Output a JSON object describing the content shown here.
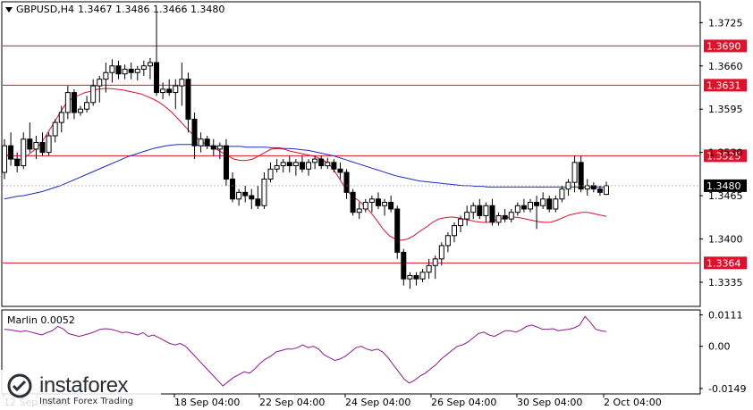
{
  "header": {
    "symbol_timeframe": "GBPUSD,H4",
    "ohlc": "1.3467 1.3486 1.3466 1.3480"
  },
  "indicator": {
    "name": "Marlin",
    "value": "0.0052"
  },
  "logo": {
    "name": "instaforex",
    "tagline": "Instant Forex Trading"
  },
  "colors": {
    "candle_up": "#ffffff",
    "candle_down": "#000000",
    "ma_fast": "#e0102a",
    "ma_slow": "#1a2bc8",
    "marlin": "#8b1a8b",
    "hline": "#e0102a",
    "price_badge": "#000000"
  },
  "chart_data": [
    {
      "type": "candlestick",
      "ylim": [
        1.33,
        1.3755
      ],
      "price_axis_ticks": [
        "1.3725",
        "1.3660",
        "1.3595",
        "1.3530",
        "1.3465",
        "1.3400",
        "1.3335"
      ],
      "time_labels": [
        "12 Sep 20:00",
        "18 Sep 04:00",
        "22 Sep 04:00",
        "24 Sep 04:00",
        "26 Sep 04:00",
        "30 Sep 04:00",
        "2 Oct 04:00"
      ],
      "horizontal_levels": [
        "1.3690",
        "1.3631",
        "1.3525",
        "1.3364"
      ],
      "current_price": "1.3480",
      "candles": [
        [
          1.35,
          1.355,
          1.349,
          1.354
        ],
        [
          1.354,
          1.356,
          1.351,
          1.352
        ],
        [
          1.352,
          1.353,
          1.35,
          1.351
        ],
        [
          1.351,
          1.356,
          1.3505,
          1.355
        ],
        [
          1.355,
          1.3575,
          1.353,
          1.3535
        ],
        [
          1.3535,
          1.3555,
          1.352,
          1.3545
        ],
        [
          1.3545,
          1.356,
          1.3525,
          1.353
        ],
        [
          1.353,
          1.356,
          1.3525,
          1.3555
        ],
        [
          1.3555,
          1.358,
          1.3545,
          1.3575
        ],
        [
          1.3575,
          1.36,
          1.356,
          1.359
        ],
        [
          1.359,
          1.363,
          1.358,
          1.362
        ],
        [
          1.362,
          1.3625,
          1.358,
          1.359
        ],
        [
          1.359,
          1.36,
          1.3585,
          1.3595
        ],
        [
          1.3595,
          1.3615,
          1.359,
          1.3605
        ],
        [
          1.3605,
          1.364,
          1.36,
          1.363
        ],
        [
          1.363,
          1.3645,
          1.3605,
          1.364
        ],
        [
          1.364,
          1.3665,
          1.362,
          1.365
        ],
        [
          1.365,
          1.367,
          1.3635,
          1.366
        ],
        [
          1.366,
          1.3668,
          1.364,
          1.3648
        ],
        [
          1.3648,
          1.3662,
          1.364,
          1.3655
        ],
        [
          1.3655,
          1.3665,
          1.364,
          1.365
        ],
        [
          1.365,
          1.366,
          1.3638,
          1.3655
        ],
        [
          1.3655,
          1.3668,
          1.3645,
          1.366
        ],
        [
          1.366,
          1.3672,
          1.364,
          1.3665
        ],
        [
          1.3665,
          1.374,
          1.3615,
          1.362
        ],
        [
          1.362,
          1.3635,
          1.361,
          1.3625
        ],
        [
          1.3625,
          1.364,
          1.3615,
          1.362
        ],
        [
          1.362,
          1.364,
          1.3595,
          1.363
        ],
        [
          1.363,
          1.3665,
          1.36,
          1.364
        ],
        [
          1.364,
          1.365,
          1.356,
          1.358
        ],
        [
          1.358,
          1.359,
          1.352,
          1.354
        ],
        [
          1.354,
          1.356,
          1.353,
          1.355
        ],
        [
          1.355,
          1.3555,
          1.3535,
          1.354
        ],
        [
          1.354,
          1.355,
          1.3525,
          1.3535
        ],
        [
          1.3535,
          1.3545,
          1.352,
          1.354
        ],
        [
          1.354,
          1.355,
          1.348,
          1.349
        ],
        [
          1.349,
          1.35,
          1.3455,
          1.346
        ],
        [
          1.346,
          1.3475,
          1.345,
          1.347
        ],
        [
          1.347,
          1.348,
          1.3455,
          1.3465
        ],
        [
          1.3465,
          1.3475,
          1.3445,
          1.346
        ],
        [
          1.346,
          1.348,
          1.3445,
          1.345
        ],
        [
          1.345,
          1.35,
          1.3445,
          1.349
        ],
        [
          1.349,
          1.3515,
          1.3485,
          1.3505
        ],
        [
          1.3505,
          1.352,
          1.35,
          1.351
        ],
        [
          1.351,
          1.352,
          1.35,
          1.3515
        ],
        [
          1.3515,
          1.3525,
          1.35,
          1.351
        ],
        [
          1.351,
          1.352,
          1.3495,
          1.3515
        ],
        [
          1.3515,
          1.3525,
          1.35,
          1.3505
        ],
        [
          1.3505,
          1.352,
          1.3495,
          1.3515
        ],
        [
          1.3515,
          1.3525,
          1.3505,
          1.352
        ],
        [
          1.352,
          1.3525,
          1.3505,
          1.351
        ],
        [
          1.351,
          1.3522,
          1.3505,
          1.3515
        ],
        [
          1.3515,
          1.352,
          1.35,
          1.3505
        ],
        [
          1.3505,
          1.3515,
          1.349,
          1.35
        ],
        [
          1.35,
          1.3505,
          1.346,
          1.347
        ],
        [
          1.347,
          1.3475,
          1.3435,
          1.344
        ],
        [
          1.344,
          1.3455,
          1.343,
          1.3445
        ],
        [
          1.3445,
          1.346,
          1.344,
          1.3455
        ],
        [
          1.3455,
          1.3465,
          1.344,
          1.346
        ],
        [
          1.346,
          1.347,
          1.3445,
          1.345
        ],
        [
          1.345,
          1.346,
          1.3435,
          1.3455
        ],
        [
          1.3455,
          1.3465,
          1.344,
          1.3445
        ],
        [
          1.3445,
          1.345,
          1.337,
          1.338
        ],
        [
          1.338,
          1.3385,
          1.333,
          1.334
        ],
        [
          1.334,
          1.335,
          1.3325,
          1.3345
        ],
        [
          1.3345,
          1.335,
          1.333,
          1.334
        ],
        [
          1.334,
          1.3355,
          1.3335,
          1.335
        ],
        [
          1.335,
          1.337,
          1.334,
          1.336
        ],
        [
          1.336,
          1.3375,
          1.334,
          1.337
        ],
        [
          1.337,
          1.3395,
          1.336,
          1.339
        ],
        [
          1.339,
          1.341,
          1.338,
          1.3405
        ],
        [
          1.3405,
          1.3425,
          1.3395,
          1.342
        ],
        [
          1.342,
          1.3435,
          1.341,
          1.343
        ],
        [
          1.343,
          1.345,
          1.342,
          1.344
        ],
        [
          1.344,
          1.3455,
          1.343,
          1.345
        ],
        [
          1.345,
          1.346,
          1.343,
          1.3435
        ],
        [
          1.3435,
          1.3455,
          1.3425,
          1.345
        ],
        [
          1.345,
          1.346,
          1.342,
          1.3425
        ],
        [
          1.3425,
          1.344,
          1.342,
          1.3435
        ],
        [
          1.3435,
          1.3445,
          1.3425,
          1.343
        ],
        [
          1.343,
          1.3445,
          1.3425,
          1.344
        ],
        [
          1.344,
          1.3455,
          1.3435,
          1.345
        ],
        [
          1.345,
          1.346,
          1.344,
          1.3445
        ],
        [
          1.3445,
          1.346,
          1.344,
          1.3455
        ],
        [
          1.3455,
          1.3465,
          1.3415,
          1.345
        ],
        [
          1.345,
          1.347,
          1.3445,
          1.346
        ],
        [
          1.346,
          1.3465,
          1.344,
          1.3445
        ],
        [
          1.3445,
          1.3465,
          1.344,
          1.346
        ],
        [
          1.346,
          1.348,
          1.3455,
          1.3475
        ],
        [
          1.3475,
          1.349,
          1.3465,
          1.3485
        ],
        [
          1.3485,
          1.3525,
          1.347,
          1.3515
        ],
        [
          1.3515,
          1.3525,
          1.347,
          1.3475
        ],
        [
          1.3475,
          1.349,
          1.3465,
          1.348
        ],
        [
          1.348,
          1.3485,
          1.347,
          1.3475
        ],
        [
          1.3475,
          1.348,
          1.3465,
          1.347
        ],
        [
          1.3467,
          1.3486,
          1.3466,
          1.348
        ]
      ],
      "ma_fast": [
        1.353,
        1.3522,
        1.3518,
        1.352,
        1.3528,
        1.3535,
        1.3545,
        1.356,
        1.3575,
        1.359,
        1.3605,
        1.3612,
        1.3616,
        1.362,
        1.3622,
        1.3625,
        1.3626,
        1.3626,
        1.3625,
        1.3624,
        1.3622,
        1.362,
        1.3618,
        1.3614,
        1.361,
        1.3605,
        1.3598,
        1.359,
        1.358,
        1.357,
        1.356,
        1.3552,
        1.3545,
        1.354,
        1.3536,
        1.353,
        1.3525,
        1.352,
        1.3518,
        1.3518,
        1.352,
        1.3525,
        1.353,
        1.3535,
        1.3536,
        1.3535,
        1.3532,
        1.353,
        1.3528,
        1.3526,
        1.3524,
        1.352,
        1.3515,
        1.3505,
        1.349,
        1.3475,
        1.3465,
        1.3458,
        1.345,
        1.344,
        1.3428,
        1.3415,
        1.3405,
        1.34,
        1.3398,
        1.34,
        1.3405,
        1.3412,
        1.3418,
        1.3425,
        1.343,
        1.3432,
        1.3433,
        1.3432,
        1.343,
        1.3428,
        1.3426,
        1.3425,
        1.3425,
        1.3428,
        1.343,
        1.3432,
        1.3433,
        1.3432,
        1.343,
        1.3428,
        1.3426,
        1.3425,
        1.3425,
        1.3428,
        1.3432,
        1.3436,
        1.3438,
        1.344,
        1.344,
        1.3438,
        1.3436,
        1.3434
      ],
      "ma_slow": [
        1.346,
        1.3462,
        1.3464,
        1.3465,
        1.3467,
        1.3469,
        1.3471,
        1.3474,
        1.3477,
        1.348,
        1.3484,
        1.3488,
        1.3492,
        1.3496,
        1.35,
        1.3504,
        1.3508,
        1.3512,
        1.3516,
        1.352,
        1.3524,
        1.3527,
        1.353,
        1.3533,
        1.3536,
        1.3538,
        1.354,
        1.3541,
        1.3542,
        1.3542,
        1.3542,
        1.3541,
        1.354,
        1.354,
        1.3539,
        1.3539,
        1.3539,
        1.3539,
        1.3539,
        1.3538,
        1.3538,
        1.3538,
        1.3538,
        1.3537,
        1.3537,
        1.3536,
        1.3536,
        1.3535,
        1.3534,
        1.3533,
        1.3531,
        1.3529,
        1.3527,
        1.3525,
        1.3522,
        1.3519,
        1.3516,
        1.3513,
        1.351,
        1.3507,
        1.3504,
        1.3501,
        1.3498,
        1.3495,
        1.3493,
        1.3491,
        1.3489,
        1.3487,
        1.3486,
        1.3485,
        1.3484,
        1.3483,
        1.3482,
        1.3481,
        1.348,
        1.348,
        1.3479,
        1.3479,
        1.3478,
        1.3478,
        1.3478,
        1.3478,
        1.3478,
        1.3478,
        1.3478,
        1.3478,
        1.3478,
        1.3478,
        1.3478,
        1.3478,
        1.3478,
        1.3478,
        1.3478,
        1.3478,
        1.3478,
        1.3478,
        1.3478,
        1.3478
      ]
    },
    {
      "type": "line",
      "ylim": [
        -0.0165,
        0.0125
      ],
      "axis_ticks": [
        "0.0111",
        "0.00",
        "-0.0149"
      ],
      "values": [
        0.006,
        0.0058,
        0.0055,
        0.0052,
        0.0055,
        0.005,
        0.0045,
        0.004,
        0.0048,
        0.0055,
        0.007,
        0.0062,
        0.0045,
        0.004,
        0.0035,
        0.004,
        0.0045,
        0.0052,
        0.006,
        0.0062,
        0.006,
        0.0055,
        0.0048,
        0.005,
        0.0045,
        0.004,
        0.0048,
        0.0035,
        0.004,
        0.003,
        0.002,
        0.001,
        0.0005,
        0.001,
        0.0,
        -0.002,
        -0.004,
        -0.006,
        -0.008,
        -0.01,
        -0.012,
        -0.014,
        -0.0125,
        -0.011,
        -0.01,
        -0.009,
        -0.0095,
        -0.008,
        -0.006,
        -0.0045,
        -0.0035,
        -0.002,
        -0.0015,
        -0.001,
        -0.001,
        -0.0005,
        0.0005,
        -0.0005,
        0.0,
        -0.001,
        -0.003,
        -0.004,
        -0.005,
        -0.0045,
        -0.0035,
        -0.002,
        -0.0005,
        0.0,
        -0.001,
        -0.0015,
        -0.001,
        -0.002,
        -0.004,
        -0.0065,
        -0.009,
        -0.0115,
        -0.013,
        -0.012,
        -0.0105,
        -0.0095,
        -0.008,
        -0.0065,
        -0.0045,
        -0.003,
        -0.0015,
        0.0,
        0.0005,
        0.0015,
        0.003,
        0.0045,
        0.005,
        0.004,
        0.0035,
        0.0045,
        0.0055,
        0.0055,
        0.005,
        0.0058,
        0.007,
        0.0075,
        0.0068,
        0.006,
        0.006,
        0.0062,
        0.0055,
        0.0058,
        0.006,
        0.0065,
        0.0075,
        0.0105,
        0.0085,
        0.006,
        0.0055,
        0.0052
      ]
    }
  ]
}
